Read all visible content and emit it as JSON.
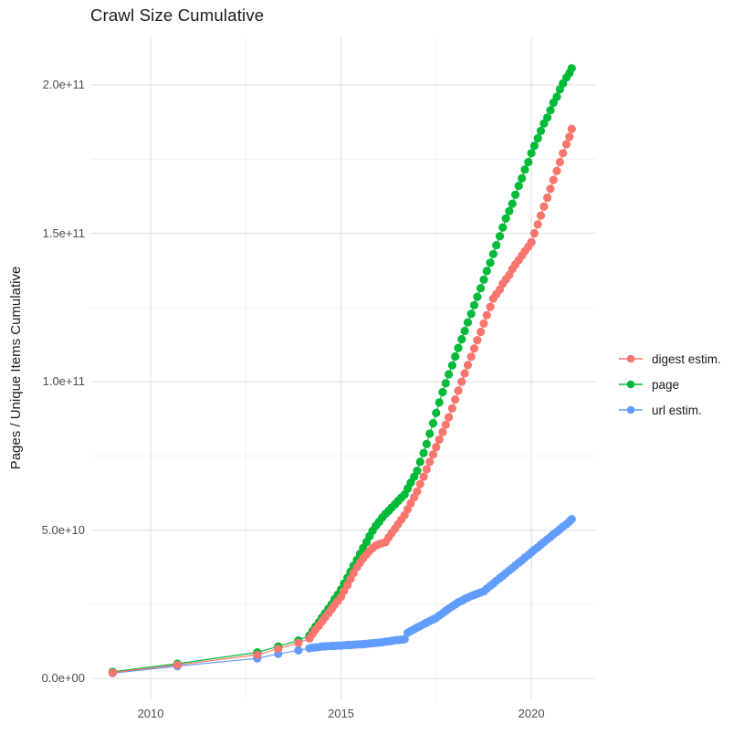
{
  "title": "Crawl Size Cumulative",
  "y_axis": {
    "label": "Pages / Unique Items Cumulative",
    "ticks": [
      {
        "label": "0.0e+00",
        "value": 0
      },
      {
        "label": "5.0e+10",
        "value": 50
      },
      {
        "label": "1.0e+11",
        "value": 100
      },
      {
        "label": "1.5e+11",
        "value": 150
      },
      {
        "label": "2.0e+11",
        "value": 200
      }
    ]
  },
  "x_axis": {
    "ticks": [
      {
        "label": "2010",
        "value": 2010
      },
      {
        "label": "2015",
        "value": 2015
      },
      {
        "label": "2020",
        "value": 2020
      }
    ]
  },
  "legend": {
    "items": [
      {
        "label": "digest estim.",
        "color": "#F8766D",
        "series_key": "digest"
      },
      {
        "label": "page",
        "color": "#00BA38",
        "series_key": "page"
      },
      {
        "label": "url estim.",
        "color": "#619CFF",
        "series_key": "url"
      }
    ]
  },
  "chart_data": {
    "type": "line",
    "marker": "point",
    "title": "Crawl Size Cumulative",
    "xlabel": "",
    "ylabel": "Pages / Unique Items Cumulative",
    "grid": true,
    "legend_position": "right",
    "x_domain": [
      2008.44,
      2021.7
    ],
    "y_domain_e9": [
      -7,
      216
    ],
    "y_unit": "items, values in billions (1e9)",
    "x_major_breaks": [
      2010,
      2015,
      2020
    ],
    "x_minor_breaks": [
      2012.5,
      2017.5
    ],
    "y_major_breaks_e9": [
      0,
      50,
      100,
      150,
      200
    ],
    "y_minor_breaks_e9": [
      25,
      75,
      125,
      175
    ],
    "series": [
      {
        "name": "digest estim.",
        "key": "digest",
        "color": "#F8766D",
        "points": [
          [
            2009.0,
            2.0
          ],
          [
            2010.7,
            4.6
          ],
          [
            2012.8,
            8.0
          ],
          [
            2013.35,
            10.0
          ],
          [
            2013.88,
            12.0
          ],
          [
            2014.17,
            13.5
          ],
          [
            2014.25,
            15
          ],
          [
            2014.33,
            16.4
          ],
          [
            2014.42,
            17.8
          ],
          [
            2014.5,
            19.2
          ],
          [
            2014.58,
            20.6
          ],
          [
            2014.67,
            22
          ],
          [
            2014.75,
            23.4
          ],
          [
            2014.83,
            24.8
          ],
          [
            2014.92,
            26.2
          ],
          [
            2015.0,
            27.5
          ],
          [
            2015.08,
            29.5
          ],
          [
            2015.17,
            31.5
          ],
          [
            2015.25,
            33.5
          ],
          [
            2015.33,
            35.5
          ],
          [
            2015.42,
            37.5
          ],
          [
            2015.5,
            39
          ],
          [
            2015.58,
            40.5
          ],
          [
            2015.67,
            41.8
          ],
          [
            2015.75,
            43
          ],
          [
            2015.83,
            44
          ],
          [
            2015.92,
            44.8
          ],
          [
            2016.0,
            45.3
          ],
          [
            2016.08,
            45.6
          ],
          [
            2016.17,
            46
          ],
          [
            2016.25,
            47.5
          ],
          [
            2016.33,
            49
          ],
          [
            2016.42,
            50.5
          ],
          [
            2016.5,
            52
          ],
          [
            2016.58,
            53.5
          ],
          [
            2016.67,
            55
          ],
          [
            2016.75,
            57
          ],
          [
            2016.83,
            59
          ],
          [
            2016.92,
            61
          ],
          [
            2017.0,
            63
          ],
          [
            2017.08,
            65.5
          ],
          [
            2017.17,
            68
          ],
          [
            2017.25,
            70.5
          ],
          [
            2017.33,
            73
          ],
          [
            2017.42,
            75.5
          ],
          [
            2017.5,
            78
          ],
          [
            2017.58,
            80.5
          ],
          [
            2017.67,
            83
          ],
          [
            2017.75,
            85.5
          ],
          [
            2017.83,
            88
          ],
          [
            2017.92,
            91
          ],
          [
            2018.0,
            94
          ],
          [
            2018.08,
            97
          ],
          [
            2018.17,
            100
          ],
          [
            2018.25,
            102.8
          ],
          [
            2018.33,
            105.6
          ],
          [
            2018.42,
            108.4
          ],
          [
            2018.5,
            111.2
          ],
          [
            2018.58,
            114
          ],
          [
            2018.67,
            116.8
          ],
          [
            2018.75,
            119.6
          ],
          [
            2018.83,
            122.4
          ],
          [
            2018.92,
            125.2
          ],
          [
            2019.0,
            128
          ],
          [
            2019.08,
            129.5
          ],
          [
            2019.17,
            131
          ],
          [
            2019.25,
            133
          ],
          [
            2019.33,
            134.5
          ],
          [
            2019.42,
            136
          ],
          [
            2019.5,
            138
          ],
          [
            2019.58,
            139.5
          ],
          [
            2019.67,
            141
          ],
          [
            2019.75,
            142.5
          ],
          [
            2019.83,
            144
          ],
          [
            2019.92,
            145.5
          ],
          [
            2020.0,
            147
          ],
          [
            2020.08,
            150
          ],
          [
            2020.17,
            153
          ],
          [
            2020.25,
            156
          ],
          [
            2020.33,
            159
          ],
          [
            2020.42,
            162
          ],
          [
            2020.5,
            165
          ],
          [
            2020.58,
            168
          ],
          [
            2020.67,
            171
          ],
          [
            2020.75,
            174
          ],
          [
            2020.83,
            177
          ],
          [
            2020.92,
            180
          ],
          [
            2021.0,
            182.5
          ],
          [
            2021.06,
            185.2
          ]
        ]
      },
      {
        "name": "page",
        "key": "page",
        "color": "#00BA38",
        "points": [
          [
            2009.0,
            2.3
          ],
          [
            2010.7,
            5.0
          ],
          [
            2012.8,
            8.8
          ],
          [
            2013.35,
            10.8
          ],
          [
            2013.88,
            12.8
          ],
          [
            2014.17,
            14.5
          ],
          [
            2014.25,
            16
          ],
          [
            2014.33,
            17.5
          ],
          [
            2014.42,
            19
          ],
          [
            2014.5,
            20.5
          ],
          [
            2014.58,
            22
          ],
          [
            2014.67,
            23.5
          ],
          [
            2014.75,
            25
          ],
          [
            2014.83,
            26.7
          ],
          [
            2014.92,
            28.3
          ],
          [
            2015.0,
            30
          ],
          [
            2015.08,
            32
          ],
          [
            2015.17,
            34
          ],
          [
            2015.25,
            36
          ],
          [
            2015.33,
            38
          ],
          [
            2015.42,
            40
          ],
          [
            2015.5,
            42
          ],
          [
            2015.58,
            44
          ],
          [
            2015.67,
            46
          ],
          [
            2015.75,
            48
          ],
          [
            2015.83,
            49.8
          ],
          [
            2015.92,
            51.5
          ],
          [
            2016.0,
            52.8
          ],
          [
            2016.08,
            54.2
          ],
          [
            2016.17,
            55.5
          ],
          [
            2016.25,
            56.5
          ],
          [
            2016.33,
            57.6
          ],
          [
            2016.42,
            58.7
          ],
          [
            2016.5,
            59.8
          ],
          [
            2016.58,
            60.9
          ],
          [
            2016.67,
            62
          ],
          [
            2016.75,
            64
          ],
          [
            2016.83,
            66
          ],
          [
            2016.92,
            68
          ],
          [
            2017.0,
            70
          ],
          [
            2017.08,
            73
          ],
          [
            2017.17,
            76
          ],
          [
            2017.25,
            79
          ],
          [
            2017.33,
            82.5
          ],
          [
            2017.42,
            86
          ],
          [
            2017.5,
            89.5
          ],
          [
            2017.58,
            93
          ],
          [
            2017.67,
            96.5
          ],
          [
            2017.75,
            99.5
          ],
          [
            2017.83,
            102.5
          ],
          [
            2017.92,
            105.5
          ],
          [
            2018.0,
            108.5
          ],
          [
            2018.08,
            111.4
          ],
          [
            2018.17,
            114.3
          ],
          [
            2018.25,
            117.1
          ],
          [
            2018.33,
            120
          ],
          [
            2018.42,
            122.9
          ],
          [
            2018.5,
            125.8
          ],
          [
            2018.58,
            128.6
          ],
          [
            2018.67,
            131.5
          ],
          [
            2018.75,
            134.4
          ],
          [
            2018.83,
            137.3
          ],
          [
            2018.92,
            140.1
          ],
          [
            2019.0,
            143
          ],
          [
            2019.08,
            146
          ],
          [
            2019.17,
            149
          ],
          [
            2019.25,
            152
          ],
          [
            2019.33,
            155
          ],
          [
            2019.42,
            157.5
          ],
          [
            2019.5,
            160
          ],
          [
            2019.58,
            163
          ],
          [
            2019.67,
            166
          ],
          [
            2019.75,
            168.5
          ],
          [
            2019.83,
            171.5
          ],
          [
            2019.92,
            174
          ],
          [
            2020.0,
            177
          ],
          [
            2020.08,
            179.5
          ],
          [
            2020.17,
            182
          ],
          [
            2020.25,
            184.5
          ],
          [
            2020.33,
            187
          ],
          [
            2020.42,
            189
          ],
          [
            2020.5,
            191.5
          ],
          [
            2020.58,
            194
          ],
          [
            2020.67,
            196
          ],
          [
            2020.75,
            198.5
          ],
          [
            2020.83,
            200.5
          ],
          [
            2020.92,
            202.5
          ],
          [
            2021.0,
            204
          ],
          [
            2021.06,
            205.6
          ]
        ]
      },
      {
        "name": "url estim.",
        "key": "url",
        "color": "#619CFF",
        "points": [
          [
            2009.0,
            1.8
          ],
          [
            2010.7,
            4.2
          ],
          [
            2012.8,
            6.8
          ],
          [
            2013.35,
            8.3
          ],
          [
            2013.88,
            9.5
          ],
          [
            2014.17,
            10.2
          ],
          [
            2014.25,
            10.4
          ],
          [
            2014.33,
            10.5
          ],
          [
            2014.42,
            10.6
          ],
          [
            2014.5,
            10.8
          ],
          [
            2014.58,
            10.85
          ],
          [
            2014.67,
            10.9
          ],
          [
            2014.75,
            11.0
          ],
          [
            2014.83,
            11.0
          ],
          [
            2014.92,
            11.1
          ],
          [
            2015.0,
            11.1
          ],
          [
            2015.08,
            11.2
          ],
          [
            2015.17,
            11.3
          ],
          [
            2015.25,
            11.3
          ],
          [
            2015.33,
            11.4
          ],
          [
            2015.42,
            11.5
          ],
          [
            2015.5,
            11.5
          ],
          [
            2015.58,
            11.6
          ],
          [
            2015.67,
            11.7
          ],
          [
            2015.75,
            11.8
          ],
          [
            2015.83,
            11.9
          ],
          [
            2015.92,
            12.0
          ],
          [
            2016.0,
            12.1
          ],
          [
            2016.08,
            12.2
          ],
          [
            2016.17,
            12.4
          ],
          [
            2016.25,
            12.5
          ],
          [
            2016.33,
            12.7
          ],
          [
            2016.42,
            12.9
          ],
          [
            2016.5,
            13.0
          ],
          [
            2016.58,
            13.1
          ],
          [
            2016.67,
            13.2
          ],
          [
            2016.75,
            15.4
          ],
          [
            2016.83,
            16.0
          ],
          [
            2016.92,
            16.6
          ],
          [
            2017.0,
            17.2
          ],
          [
            2017.08,
            17.7
          ],
          [
            2017.17,
            18.3
          ],
          [
            2017.25,
            18.8
          ],
          [
            2017.33,
            19.4
          ],
          [
            2017.42,
            19.9
          ],
          [
            2017.5,
            20.4
          ],
          [
            2017.58,
            21.2
          ],
          [
            2017.67,
            22
          ],
          [
            2017.75,
            22.8
          ],
          [
            2017.83,
            23.5
          ],
          [
            2017.92,
            24.3
          ],
          [
            2018.0,
            25
          ],
          [
            2018.08,
            25.7
          ],
          [
            2018.17,
            26.2
          ],
          [
            2018.25,
            26.8
          ],
          [
            2018.33,
            27.3
          ],
          [
            2018.42,
            27.8
          ],
          [
            2018.5,
            28.2
          ],
          [
            2018.58,
            28.6
          ],
          [
            2018.67,
            29
          ],
          [
            2018.75,
            29.4
          ],
          [
            2018.83,
            30.3
          ],
          [
            2018.92,
            31.2
          ],
          [
            2019.0,
            32
          ],
          [
            2019.08,
            32.9
          ],
          [
            2019.17,
            33.8
          ],
          [
            2019.25,
            34.6
          ],
          [
            2019.33,
            35.5
          ],
          [
            2019.42,
            36.4
          ],
          [
            2019.5,
            37.2
          ],
          [
            2019.58,
            38.1
          ],
          [
            2019.67,
            39
          ],
          [
            2019.75,
            39.8
          ],
          [
            2019.83,
            40.7
          ],
          [
            2019.92,
            41.6
          ],
          [
            2020.0,
            42.5
          ],
          [
            2020.08,
            43.4
          ],
          [
            2020.17,
            44.2
          ],
          [
            2020.25,
            45.1
          ],
          [
            2020.33,
            46
          ],
          [
            2020.42,
            46.9
          ],
          [
            2020.5,
            47.7
          ],
          [
            2020.58,
            48.6
          ],
          [
            2020.67,
            49.4
          ],
          [
            2020.75,
            50.3
          ],
          [
            2020.83,
            51.2
          ],
          [
            2020.92,
            52
          ],
          [
            2021.0,
            52.9
          ],
          [
            2021.06,
            53.7
          ]
        ]
      }
    ]
  }
}
